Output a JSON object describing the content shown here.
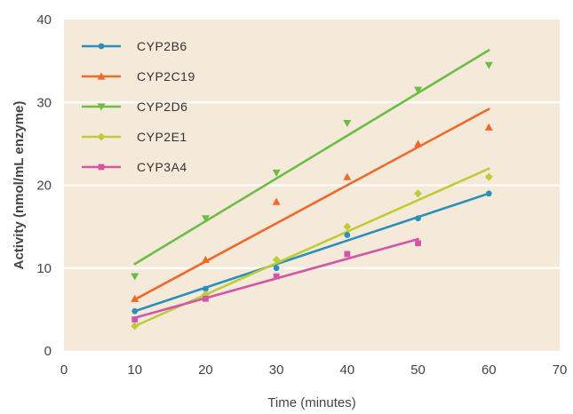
{
  "chart_data": {
    "type": "scatter",
    "title": "",
    "xlabel": "Time (minutes)",
    "ylabel": "Activity (nmol/mL enzyme)",
    "xlim": [
      0,
      70
    ],
    "ylim": [
      0,
      40
    ],
    "x_ticks": [
      "0",
      "10",
      "20",
      "30",
      "40",
      "50",
      "60",
      "70"
    ],
    "y_ticks": [
      "0",
      "10",
      "20",
      "30",
      "40"
    ],
    "grid": "horizontal",
    "legend_position": "top-left",
    "background_color": "#f5e9d9",
    "series": [
      {
        "name": "CYP2B6",
        "color": "#2a8fb9",
        "marker": "circle",
        "points": [
          [
            10,
            4.8
          ],
          [
            20,
            7.5
          ],
          [
            30,
            10
          ],
          [
            40,
            14
          ],
          [
            50,
            16
          ],
          [
            60,
            19
          ]
        ],
        "trendline": [
          [
            10,
            4.8
          ],
          [
            60,
            19
          ]
        ]
      },
      {
        "name": "CYP2C19",
        "color": "#ee6a2a",
        "marker": "triangle-up",
        "points": [
          [
            10,
            6.3
          ],
          [
            20,
            11
          ],
          [
            30,
            18
          ],
          [
            40,
            21
          ],
          [
            50,
            25
          ],
          [
            60,
            27
          ]
        ],
        "trendline": [
          [
            10,
            6.2
          ],
          [
            60,
            29.2
          ]
        ]
      },
      {
        "name": "CYP2D6",
        "color": "#6cbd45",
        "marker": "triangle-down",
        "points": [
          [
            10,
            9
          ],
          [
            20,
            16
          ],
          [
            30,
            21.5
          ],
          [
            40,
            27.5
          ],
          [
            50,
            31.5
          ],
          [
            60,
            34.5
          ]
        ],
        "trendline": [
          [
            10,
            10.5
          ],
          [
            60,
            36.3
          ]
        ]
      },
      {
        "name": "CYP2E1",
        "color": "#bccd3a",
        "marker": "diamond",
        "points": [
          [
            10,
            3
          ],
          [
            20,
            6.8
          ],
          [
            30,
            11
          ],
          [
            40,
            15
          ],
          [
            50,
            19
          ],
          [
            60,
            21
          ]
        ],
        "trendline": [
          [
            10,
            3
          ],
          [
            60,
            22
          ]
        ]
      },
      {
        "name": "CYP3A4",
        "color": "#d156a7",
        "marker": "square",
        "points": [
          [
            10,
            3.8
          ],
          [
            20,
            6.3
          ],
          [
            30,
            9
          ],
          [
            40,
            11.7
          ],
          [
            50,
            13
          ]
        ],
        "trendline": [
          [
            10,
            4
          ],
          [
            50,
            13.5
          ]
        ]
      }
    ]
  }
}
